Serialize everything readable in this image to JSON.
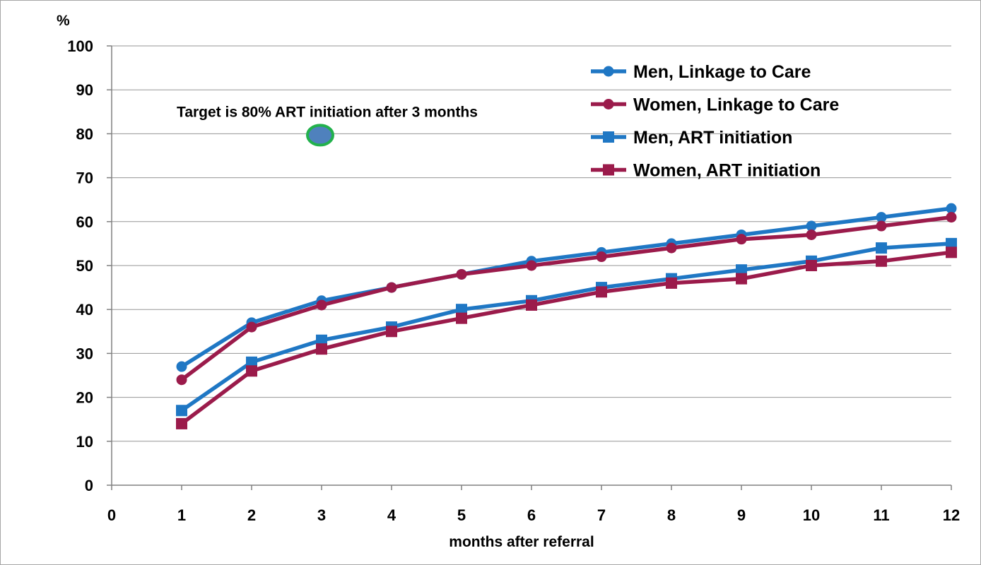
{
  "chart_data": {
    "type": "line",
    "title": "",
    "xlabel": "months after referral",
    "ylabel": "%",
    "x": [
      1,
      2,
      3,
      4,
      5,
      6,
      7,
      8,
      9,
      10,
      11,
      12
    ],
    "xticks": [
      "0",
      "1",
      "2",
      "3",
      "4",
      "5",
      "6",
      "7",
      "8",
      "9",
      "10",
      "11",
      "12"
    ],
    "yticks": [
      "0",
      "10",
      "20",
      "30",
      "40",
      "50",
      "60",
      "70",
      "80",
      "90",
      "100"
    ],
    "xlim": [
      0,
      12
    ],
    "ylim": [
      0,
      100
    ],
    "grid": "horizontal",
    "legend_position": "top-right",
    "series": [
      {
        "name": "Men, Linkage to Care",
        "marker": "circle",
        "color": "#1f77c4",
        "values": [
          27,
          37,
          42,
          45,
          48,
          51,
          53,
          55,
          57,
          59,
          61,
          63
        ]
      },
      {
        "name": "Women, Linkage to Care",
        "marker": "circle",
        "color": "#9b1b4b",
        "values": [
          24,
          36,
          41,
          45,
          48,
          50,
          52,
          54,
          56,
          57,
          59,
          61
        ]
      },
      {
        "name": "Men, ART initiation",
        "marker": "square",
        "color": "#1f77c4",
        "values": [
          17,
          28,
          33,
          36,
          40,
          42,
          45,
          47,
          49,
          51,
          54,
          55
        ]
      },
      {
        "name": "Women, ART initiation",
        "marker": "square",
        "color": "#9b1b4b",
        "values": [
          14,
          26,
          31,
          35,
          38,
          41,
          44,
          46,
          47,
          50,
          51,
          53
        ]
      }
    ],
    "annotations": [
      {
        "text": "Target is 80% ART initiation after 3 months",
        "x": 3,
        "y": 80,
        "marker_fill": "#4f81bd",
        "marker_outline": "#22b14c"
      }
    ]
  }
}
